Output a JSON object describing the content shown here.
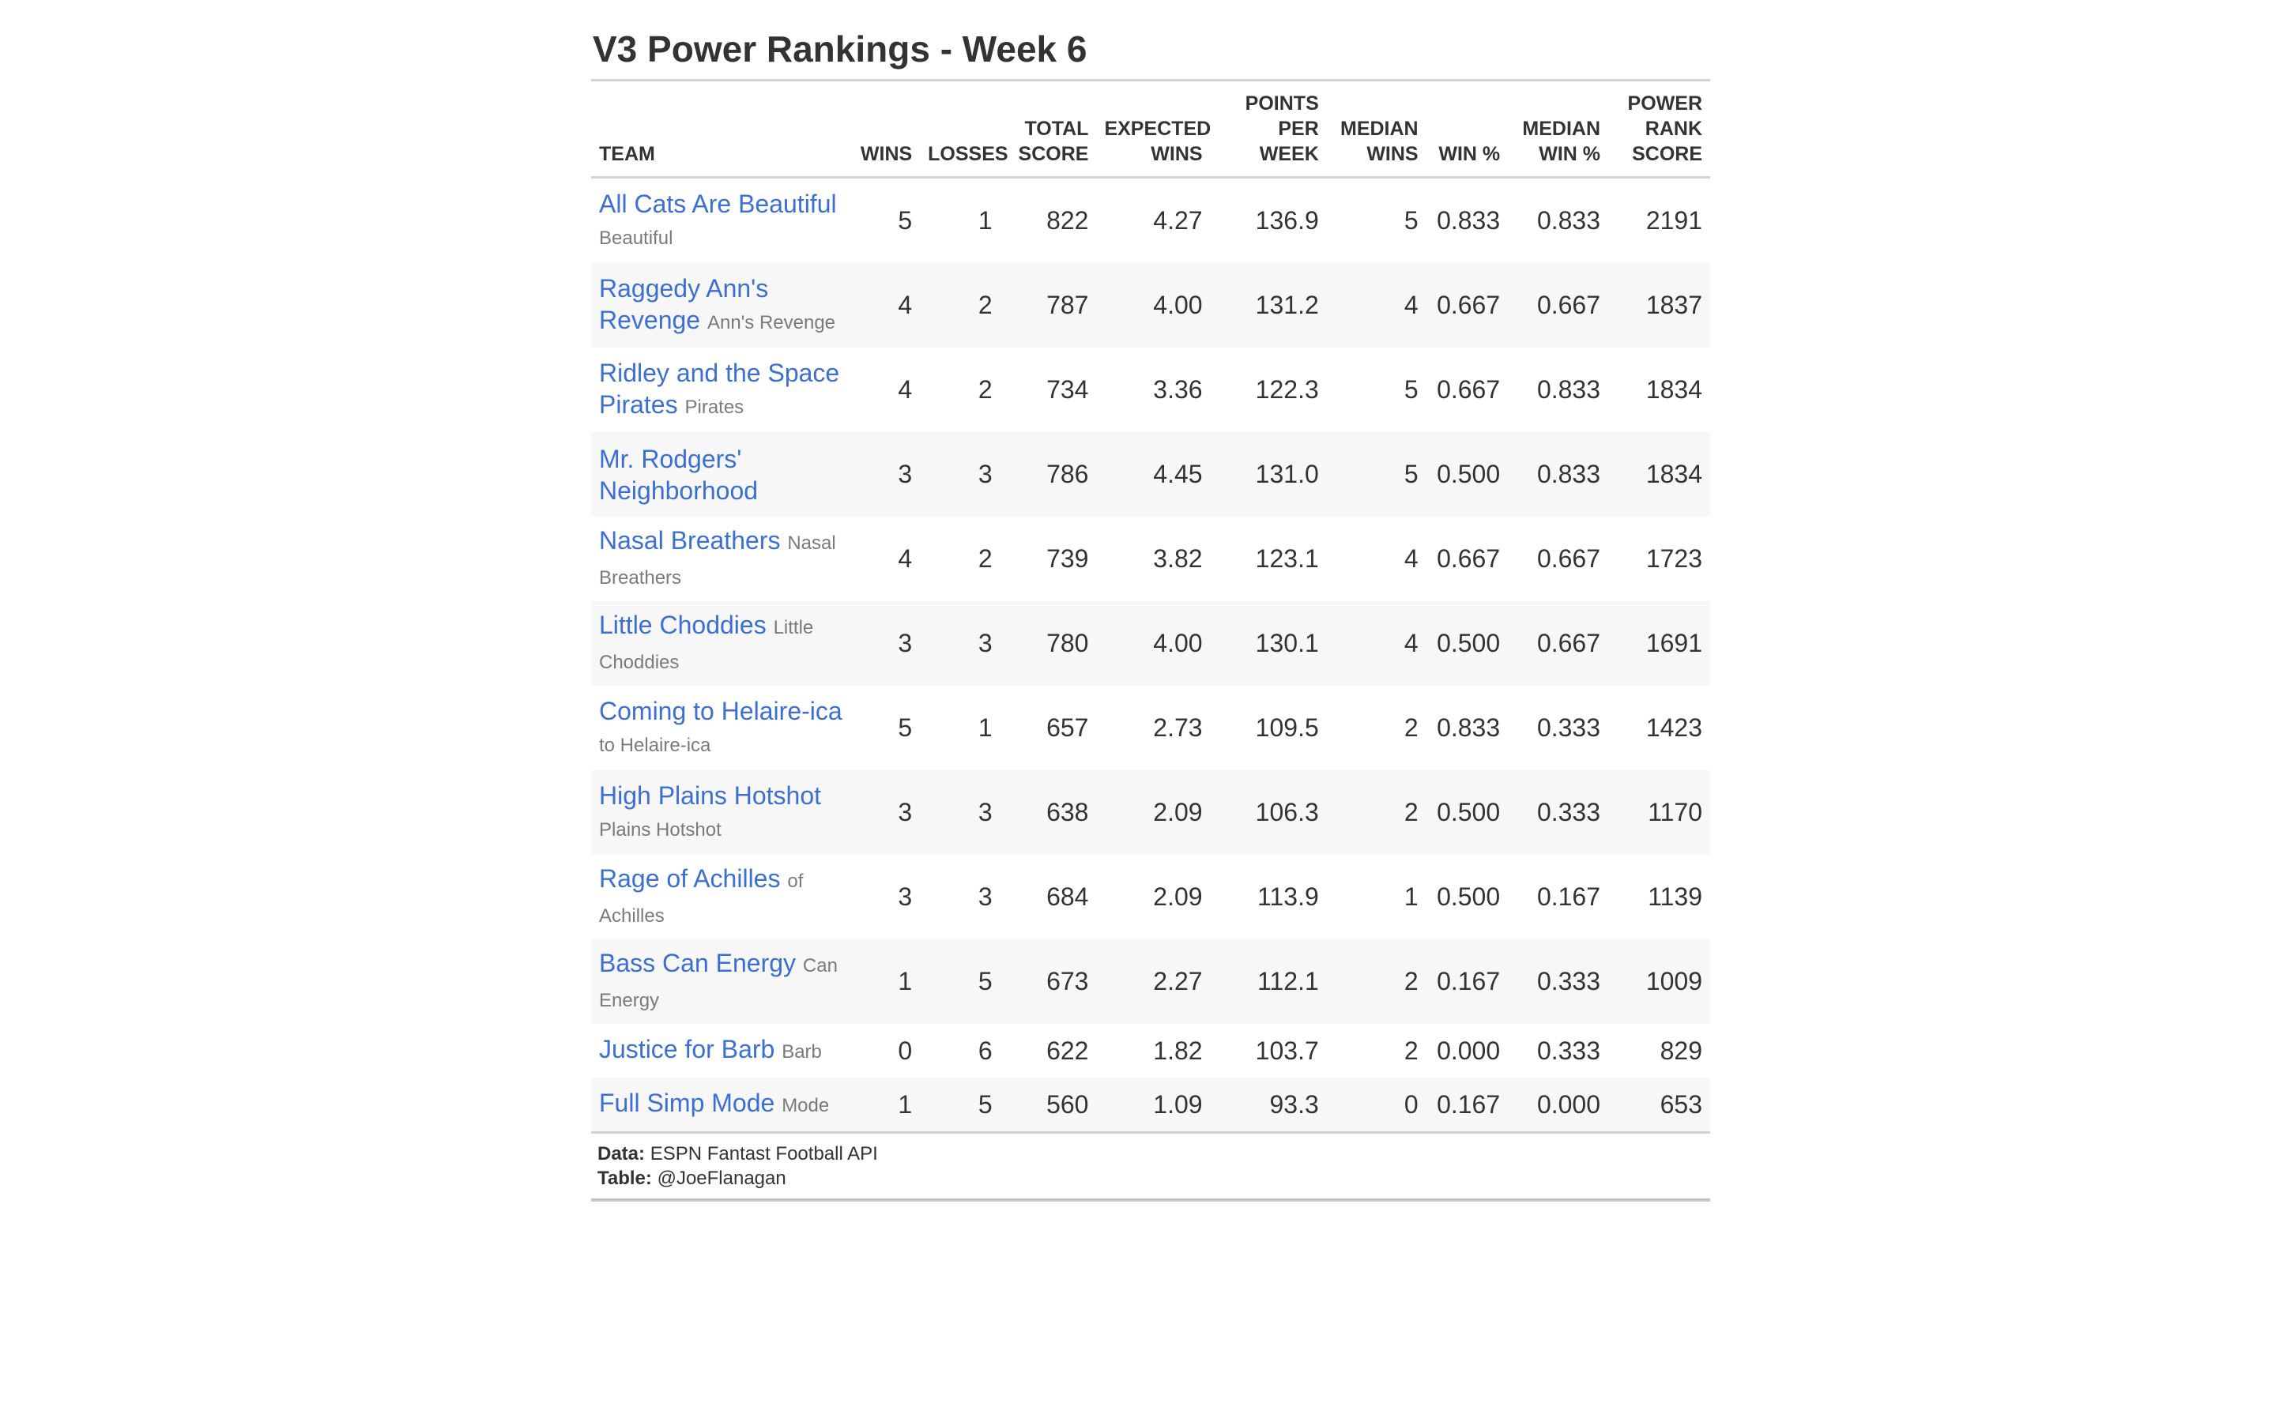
{
  "title": "V3 Power Rankings - Week 6",
  "columns": {
    "team": "TEAM",
    "wins": "WINS",
    "losses": "LOSSES",
    "total_score": [
      "TOTAL",
      "SCORE"
    ],
    "expected_wins": [
      "EXPECTED",
      "WINS"
    ],
    "ppw": [
      "POINTS",
      "PER",
      "WEEK"
    ],
    "median_wins": [
      "MEDIAN",
      "WINS"
    ],
    "win_pct": "WIN %",
    "median_win_pct": [
      "MEDIAN",
      "WIN %"
    ],
    "power_rank": [
      "POWER",
      "RANK",
      "SCORE"
    ]
  },
  "rows": [
    {
      "name": "All Cats Are Beautiful",
      "sub": "Beautiful",
      "wins": "5",
      "losses": "1",
      "total": "822",
      "exp_wins": "4.27",
      "ppw": "136.9",
      "median_wins": "5",
      "win_pct": "0.833",
      "median_win_pct": "0.833",
      "power": "2191"
    },
    {
      "name": "Raggedy Ann's Revenge",
      "sub": "Ann's Revenge",
      "wins": "4",
      "losses": "2",
      "total": "787",
      "exp_wins": "4.00",
      "ppw": "131.2",
      "median_wins": "4",
      "win_pct": "0.667",
      "median_win_pct": "0.667",
      "power": "1837"
    },
    {
      "name": "Ridley and the Space Pirates",
      "sub": "Pirates",
      "wins": "4",
      "losses": "2",
      "total": "734",
      "exp_wins": "3.36",
      "ppw": "122.3",
      "median_wins": "5",
      "win_pct": "0.667",
      "median_win_pct": "0.833",
      "power": "1834"
    },
    {
      "name": "Mr. Rodgers' Neighborhood",
      "sub": "",
      "wins": "3",
      "losses": "3",
      "total": "786",
      "exp_wins": "4.45",
      "ppw": "131.0",
      "median_wins": "5",
      "win_pct": "0.500",
      "median_win_pct": "0.833",
      "power": "1834"
    },
    {
      "name": "Nasal Breathers",
      "sub": "Nasal Breathers",
      "wins": "4",
      "losses": "2",
      "total": "739",
      "exp_wins": "3.82",
      "ppw": "123.1",
      "median_wins": "4",
      "win_pct": "0.667",
      "median_win_pct": "0.667",
      "power": "1723"
    },
    {
      "name": "Little Choddies",
      "sub": "Little Choddies",
      "wins": "3",
      "losses": "3",
      "total": "780",
      "exp_wins": "4.00",
      "ppw": "130.1",
      "median_wins": "4",
      "win_pct": "0.500",
      "median_win_pct": "0.667",
      "power": "1691"
    },
    {
      "name": "Coming to Helaire-ica",
      "sub": "to Helaire-ica",
      "wins": "5",
      "losses": "1",
      "total": "657",
      "exp_wins": "2.73",
      "ppw": "109.5",
      "median_wins": "2",
      "win_pct": "0.833",
      "median_win_pct": "0.333",
      "power": "1423"
    },
    {
      "name": "High Plains Hotshot",
      "sub": "Plains Hotshot",
      "wins": "3",
      "losses": "3",
      "total": "638",
      "exp_wins": "2.09",
      "ppw": "106.3",
      "median_wins": "2",
      "win_pct": "0.500",
      "median_win_pct": "0.333",
      "power": "1170"
    },
    {
      "name": "Rage of Achilles",
      "sub": "of Achilles",
      "wins": "3",
      "losses": "3",
      "total": "684",
      "exp_wins": "2.09",
      "ppw": "113.9",
      "median_wins": "1",
      "win_pct": "0.500",
      "median_win_pct": "0.167",
      "power": "1139"
    },
    {
      "name": "Bass Can Energy",
      "sub": "Can Energy",
      "wins": "1",
      "losses": "5",
      "total": "673",
      "exp_wins": "2.27",
      "ppw": "112.1",
      "median_wins": "2",
      "win_pct": "0.167",
      "median_win_pct": "0.333",
      "power": "1009"
    },
    {
      "name": "Justice for Barb",
      "sub": "Barb",
      "wins": "0",
      "losses": "6",
      "total": "622",
      "exp_wins": "1.82",
      "ppw": "103.7",
      "median_wins": "2",
      "win_pct": "0.000",
      "median_win_pct": "0.333",
      "power": "829"
    },
    {
      "name": "Full Simp Mode",
      "sub": "Mode",
      "wins": "1",
      "losses": "5",
      "total": "560",
      "exp_wins": "1.09",
      "ppw": "93.3",
      "median_wins": "0",
      "win_pct": "0.167",
      "median_win_pct": "0.000",
      "power": "653"
    }
  ],
  "footer": {
    "data_label": "Data:",
    "data_value": "ESPN Fantast Football API",
    "table_label": "Table:",
    "table_value": "@JoeFlanagan"
  },
  "colors": {
    "link": "#3b6fd4",
    "sub_text": "#7a7a7a",
    "row_stripe": "#f7f7f7",
    "rule": "#d3d3d3"
  }
}
